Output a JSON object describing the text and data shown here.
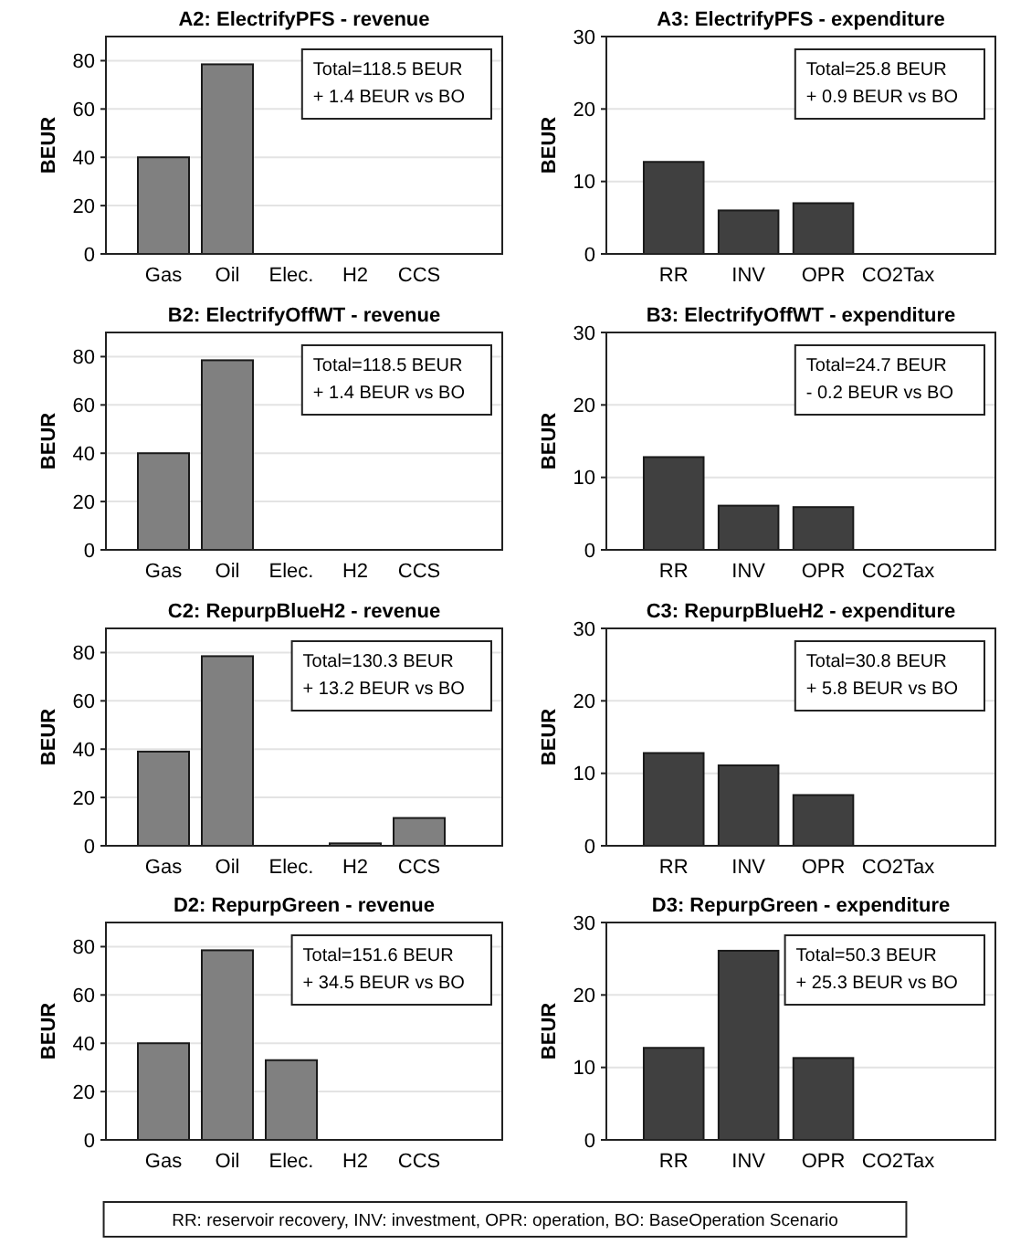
{
  "chart_data": [
    {
      "type": "bar",
      "title": "A2: ElectrifyPFS - revenue",
      "ylabel": "BEUR",
      "categories": [
        "Gas",
        "Oil",
        "Elec.",
        "H2",
        "CCS"
      ],
      "values": [
        40,
        78.5,
        0,
        0,
        0
      ],
      "color": "#808080",
      "ylim": [
        0,
        90
      ],
      "yticks": [
        0,
        20,
        40,
        60,
        80
      ],
      "grid": "y",
      "annotations": [
        "Total=118.5 BEUR",
        "+ 1.4 BEUR vs BO"
      ]
    },
    {
      "type": "bar",
      "title": "A3: ElectrifyPFS - expenditure",
      "ylabel": "BEUR",
      "categories": [
        "RR",
        "INV",
        "OPR",
        "CO2Tax"
      ],
      "values": [
        12.7,
        6,
        7,
        0
      ],
      "color": "#404040",
      "ylim": [
        0,
        30
      ],
      "yticks": [
        0,
        10,
        20,
        30
      ],
      "grid": "y",
      "annotations": [
        "Total=25.8 BEUR",
        "+ 0.9 BEUR vs BO"
      ]
    },
    {
      "type": "bar",
      "title": "B2: ElectrifyOffWT - revenue",
      "ylabel": "BEUR",
      "categories": [
        "Gas",
        "Oil",
        "Elec.",
        "H2",
        "CCS"
      ],
      "values": [
        40,
        78.5,
        0,
        0,
        0
      ],
      "color": "#808080",
      "ylim": [
        0,
        90
      ],
      "yticks": [
        0,
        20,
        40,
        60,
        80
      ],
      "grid": "y",
      "annotations": [
        "Total=118.5 BEUR",
        "+ 1.4 BEUR vs BO"
      ]
    },
    {
      "type": "bar",
      "title": "B3: ElectrifyOffWT - expenditure",
      "ylabel": "BEUR",
      "categories": [
        "RR",
        "INV",
        "OPR",
        "CO2Tax"
      ],
      "values": [
        12.8,
        6.1,
        5.9,
        0
      ],
      "color": "#404040",
      "ylim": [
        0,
        30
      ],
      "yticks": [
        0,
        10,
        20,
        30
      ],
      "grid": "y",
      "annotations": [
        "Total=24.7 BEUR",
        "- 0.2 BEUR vs BO"
      ]
    },
    {
      "type": "bar",
      "title": "C2: RepurpBlueH2 - revenue",
      "ylabel": "BEUR",
      "categories": [
        "Gas",
        "Oil",
        "Elec.",
        "H2",
        "CCS"
      ],
      "values": [
        39,
        78.5,
        0,
        1,
        11.5
      ],
      "color": "#808080",
      "ylim": [
        0,
        90
      ],
      "yticks": [
        0,
        20,
        40,
        60,
        80
      ],
      "grid": "y",
      "annotations": [
        "Total=130.3 BEUR",
        "+ 13.2 BEUR vs BO"
      ]
    },
    {
      "type": "bar",
      "title": "C3: RepurpBlueH2 - expenditure",
      "ylabel": "BEUR",
      "categories": [
        "RR",
        "INV",
        "OPR",
        "CO2Tax"
      ],
      "values": [
        12.8,
        11.1,
        7,
        0
      ],
      "color": "#404040",
      "ylim": [
        0,
        30
      ],
      "yticks": [
        0,
        10,
        20,
        30
      ],
      "grid": "y",
      "annotations": [
        "Total=30.8 BEUR",
        "+ 5.8 BEUR vs BO"
      ]
    },
    {
      "type": "bar",
      "title": "D2: RepurpGreen - revenue",
      "ylabel": "BEUR",
      "categories": [
        "Gas",
        "Oil",
        "Elec.",
        "H2",
        "CCS"
      ],
      "values": [
        40,
        78.5,
        33,
        0,
        0
      ],
      "color": "#808080",
      "ylim": [
        0,
        90
      ],
      "yticks": [
        0,
        20,
        40,
        60,
        80
      ],
      "grid": "y",
      "annotations": [
        "Total=151.6 BEUR",
        "+ 34.5 BEUR vs BO"
      ]
    },
    {
      "type": "bar",
      "title": "D3: RepurpGreen - expenditure",
      "ylabel": "BEUR",
      "categories": [
        "RR",
        "INV",
        "OPR",
        "CO2Tax"
      ],
      "values": [
        12.7,
        26.1,
        11.3,
        0
      ],
      "color": "#404040",
      "ylim": [
        0,
        30
      ],
      "yticks": [
        0,
        10,
        20,
        30
      ],
      "grid": "y",
      "annotations": [
        "Total=50.3 BEUR",
        "+ 25.3 BEUR vs BO"
      ]
    },
    {
      "type": "other",
      "annotations": [
        "RR: reservoir recovery, INV: investment, OPR: operation, BO: BaseOperation Scenario"
      ]
    }
  ]
}
